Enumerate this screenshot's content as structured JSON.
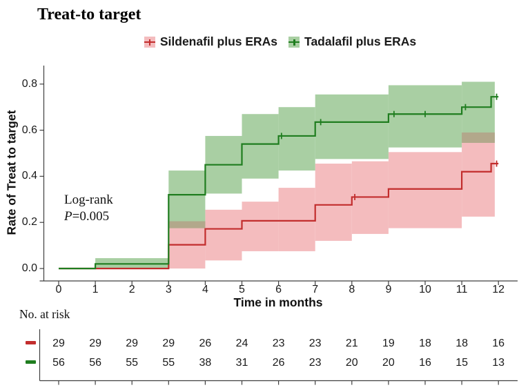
{
  "title": "Treat-to target",
  "legend": {
    "items": [
      {
        "label": "Sildenafil plus ERAs",
        "line_color": "#c22d2d",
        "band_color": "#f4bcbe"
      },
      {
        "label": "Tadalafil plus ERAs",
        "line_color": "#1f7d1f",
        "band_color": "#a9cfa3"
      }
    ]
  },
  "annotation": {
    "line1": "Log-rank",
    "p_label": "P",
    "p_value": "=0.005"
  },
  "axes": {
    "y_label": "Rate of Treat to target",
    "x_label": "Time in months",
    "y_ticks": [
      "0.0",
      "0.2",
      "0.4",
      "0.6",
      "0.8"
    ],
    "x_ticks": [
      "0",
      "1",
      "2",
      "3",
      "4",
      "5",
      "6",
      "7",
      "8",
      "9",
      "10",
      "11",
      "12"
    ]
  },
  "risk_table": {
    "heading": "No. at risk",
    "rows": [
      {
        "series": "Sildenafil plus ERAs",
        "color": "#c22d2d",
        "counts": [
          29,
          29,
          29,
          29,
          26,
          24,
          23,
          23,
          21,
          19,
          18,
          18,
          16
        ]
      },
      {
        "series": "Tadalafil plus ERAs",
        "color": "#1f7d1f",
        "counts": [
          56,
          56,
          55,
          55,
          38,
          31,
          26,
          23,
          20,
          20,
          16,
          15,
          13
        ]
      }
    ]
  },
  "chart_data": {
    "type": "line",
    "variant": "kaplan_meier_step_curves_with_ci_bands",
    "title": "Treat-to target",
    "xlabel": "Time in months",
    "ylabel": "Rate of Treat to target",
    "xlim": [
      0,
      12
    ],
    "ylim": [
      0,
      0.8
    ],
    "x_ticks": [
      0,
      1,
      2,
      3,
      4,
      5,
      6,
      7,
      8,
      9,
      10,
      11,
      12
    ],
    "y_ticks": [
      0,
      0.2,
      0.4,
      0.6,
      0.8
    ],
    "grid": false,
    "legend_position": "top",
    "annotation": "Log-rank P=0.005",
    "series": [
      {
        "name": "Sildenafil plus ERAs",
        "line_color": "#c22d2d",
        "band_color": "#f4bcbe",
        "steps": [
          [
            0,
            0
          ],
          [
            3,
            0.103
          ],
          [
            4,
            0.172
          ],
          [
            5,
            0.207
          ],
          [
            7,
            0.276
          ],
          [
            8,
            0.31
          ],
          [
            9,
            0.345
          ],
          [
            11,
            0.42
          ],
          [
            11.8,
            0.455
          ]
        ],
        "end_x": 12.0,
        "censor_marks": [
          [
            8.08,
            0.31
          ],
          [
            11.95,
            0.455
          ]
        ],
        "ci_band": [
          [
            3,
            4,
            0.0,
            0.205
          ],
          [
            4,
            5,
            0.035,
            0.255
          ],
          [
            5,
            6,
            0.075,
            0.29
          ],
          [
            6,
            7,
            0.075,
            0.35
          ],
          [
            7,
            8,
            0.12,
            0.455
          ],
          [
            8,
            9,
            0.15,
            0.465
          ],
          [
            9,
            11,
            0.175,
            0.505
          ],
          [
            11,
            11.9,
            0.225,
            0.59
          ]
        ],
        "at_risk": [
          29,
          29,
          29,
          29,
          26,
          24,
          23,
          23,
          21,
          19,
          18,
          18,
          16
        ]
      },
      {
        "name": "Tadalafil plus ERAs",
        "line_color": "#1f7d1f",
        "band_color": "#a9cfa3",
        "steps": [
          [
            0,
            0
          ],
          [
            1,
            0.02
          ],
          [
            3,
            0.32
          ],
          [
            4,
            0.45
          ],
          [
            5,
            0.54
          ],
          [
            6,
            0.575
          ],
          [
            7,
            0.635
          ],
          [
            9,
            0.67
          ],
          [
            11,
            0.7
          ],
          [
            11.8,
            0.745
          ]
        ],
        "end_x": 12.0,
        "censor_marks": [
          [
            6.08,
            0.575
          ],
          [
            7.15,
            0.635
          ],
          [
            9.15,
            0.67
          ],
          [
            10,
            0.67
          ],
          [
            11.1,
            0.7
          ],
          [
            11.95,
            0.745
          ]
        ],
        "ci_band": [
          [
            1,
            3,
            0.0,
            0.045
          ],
          [
            3,
            4,
            0.175,
            0.425
          ],
          [
            4,
            5,
            0.325,
            0.575
          ],
          [
            5,
            6,
            0.39,
            0.67
          ],
          [
            6,
            7,
            0.425,
            0.7
          ],
          [
            7,
            9,
            0.475,
            0.755
          ],
          [
            9,
            11,
            0.525,
            0.795
          ],
          [
            11,
            11.9,
            0.545,
            0.81
          ]
        ],
        "at_risk": [
          56,
          56,
          55,
          55,
          38,
          31,
          26,
          23,
          20,
          20,
          16,
          15,
          13
        ]
      }
    ],
    "overlap_color": "#b2a88b",
    "band_overlaps": [
      [
        3,
        4,
        0.175,
        0.205
      ],
      [
        11,
        11.9,
        0.545,
        0.59
      ]
    ]
  }
}
